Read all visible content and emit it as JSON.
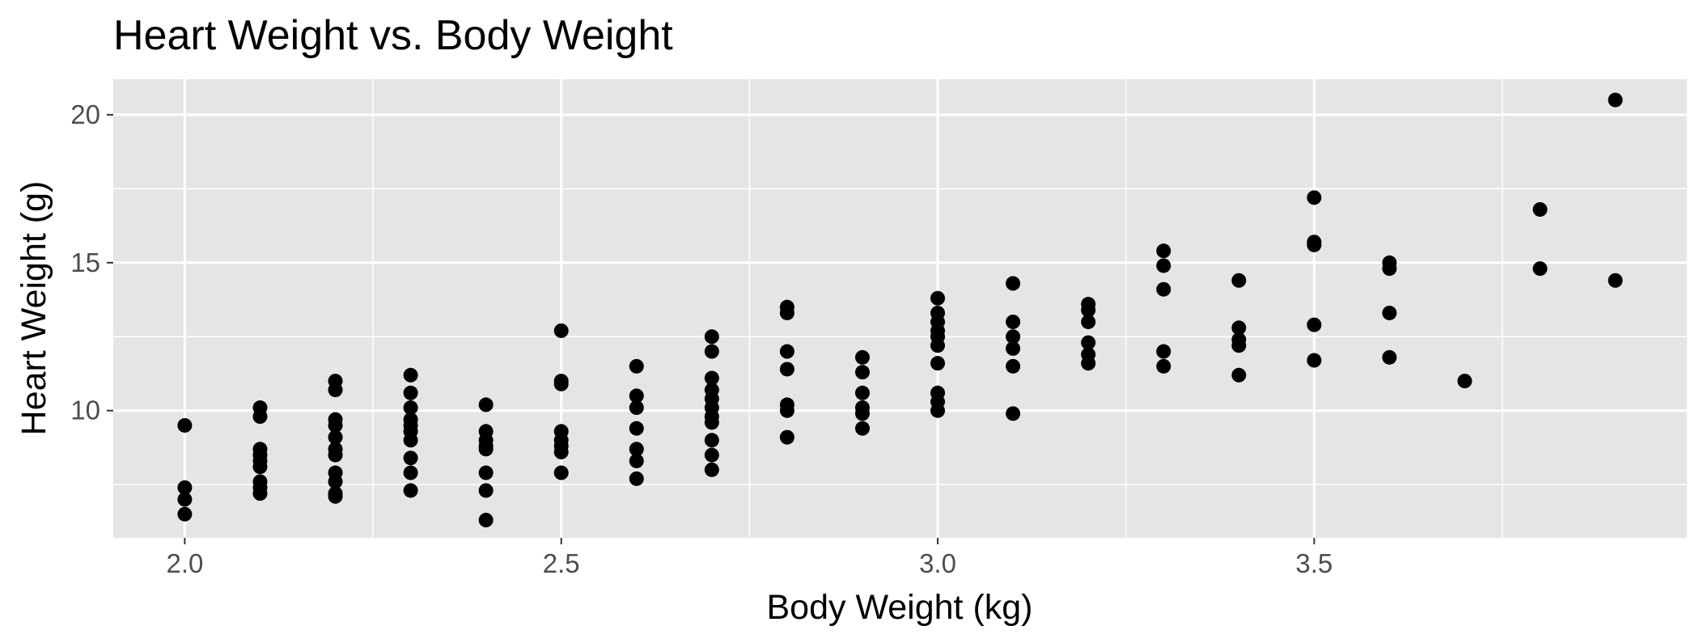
{
  "chart_data": {
    "type": "scatter",
    "title": "Heart Weight vs. Body Weight",
    "xlabel": "Body Weight (kg)",
    "ylabel": "Heart Weight (g)",
    "xlim": [
      1.905,
      3.995
    ],
    "ylim": [
      5.7,
      21.2
    ],
    "x_ticks": [
      2.0,
      2.5,
      3.0,
      3.5
    ],
    "x_tick_labels": [
      "2.0",
      "2.5",
      "3.0",
      "3.5"
    ],
    "y_ticks": [
      10,
      15,
      20
    ],
    "y_tick_labels": [
      "10",
      "15",
      "20"
    ],
    "grid": true,
    "legend": "none",
    "colors": {
      "panel": "#e5e5e5",
      "grid": "#ffffff",
      "point": "#000000",
      "tick": "#333333"
    },
    "series": [
      {
        "points": [
          [
            2.0,
            9.5
          ],
          [
            2.0,
            7.4
          ],
          [
            2.0,
            7.0
          ],
          [
            2.0,
            6.5
          ],
          [
            2.1,
            10.1
          ],
          [
            2.1,
            9.8
          ],
          [
            2.1,
            8.7
          ],
          [
            2.1,
            8.5
          ],
          [
            2.1,
            8.3
          ],
          [
            2.1,
            8.1
          ],
          [
            2.1,
            7.6
          ],
          [
            2.1,
            7.4
          ],
          [
            2.1,
            7.2
          ],
          [
            2.2,
            11.0
          ],
          [
            2.2,
            10.7
          ],
          [
            2.2,
            9.7
          ],
          [
            2.2,
            9.5
          ],
          [
            2.2,
            9.1
          ],
          [
            2.2,
            8.7
          ],
          [
            2.2,
            8.5
          ],
          [
            2.2,
            7.9
          ],
          [
            2.2,
            7.6
          ],
          [
            2.2,
            7.2
          ],
          [
            2.2,
            7.1
          ],
          [
            2.3,
            11.2
          ],
          [
            2.3,
            10.6
          ],
          [
            2.3,
            10.1
          ],
          [
            2.3,
            9.7
          ],
          [
            2.3,
            9.5
          ],
          [
            2.3,
            9.3
          ],
          [
            2.3,
            9.0
          ],
          [
            2.3,
            8.4
          ],
          [
            2.3,
            7.9
          ],
          [
            2.3,
            7.3
          ],
          [
            2.4,
            10.2
          ],
          [
            2.4,
            9.3
          ],
          [
            2.4,
            9.0
          ],
          [
            2.4,
            8.8
          ],
          [
            2.4,
            8.7
          ],
          [
            2.4,
            7.9
          ],
          [
            2.4,
            7.3
          ],
          [
            2.4,
            6.3
          ],
          [
            2.5,
            12.7
          ],
          [
            2.5,
            11.0
          ],
          [
            2.5,
            10.9
          ],
          [
            2.5,
            9.3
          ],
          [
            2.5,
            9.0
          ],
          [
            2.5,
            8.8
          ],
          [
            2.5,
            8.6
          ],
          [
            2.5,
            7.9
          ],
          [
            2.6,
            11.5
          ],
          [
            2.6,
            10.5
          ],
          [
            2.6,
            10.1
          ],
          [
            2.6,
            9.4
          ],
          [
            2.6,
            8.7
          ],
          [
            2.6,
            8.3
          ],
          [
            2.6,
            7.7
          ],
          [
            2.7,
            12.5
          ],
          [
            2.7,
            12.0
          ],
          [
            2.7,
            11.1
          ],
          [
            2.7,
            10.7
          ],
          [
            2.7,
            10.4
          ],
          [
            2.7,
            10.1
          ],
          [
            2.7,
            9.8
          ],
          [
            2.7,
            9.6
          ],
          [
            2.7,
            9.0
          ],
          [
            2.7,
            8.5
          ],
          [
            2.7,
            8.0
          ],
          [
            2.8,
            13.5
          ],
          [
            2.8,
            13.3
          ],
          [
            2.8,
            12.0
          ],
          [
            2.8,
            11.4
          ],
          [
            2.8,
            10.2
          ],
          [
            2.8,
            10.0
          ],
          [
            2.8,
            9.1
          ],
          [
            2.9,
            11.8
          ],
          [
            2.9,
            11.3
          ],
          [
            2.9,
            10.6
          ],
          [
            2.9,
            10.1
          ],
          [
            2.9,
            9.9
          ],
          [
            2.9,
            9.4
          ],
          [
            3.0,
            13.8
          ],
          [
            3.0,
            13.3
          ],
          [
            3.0,
            13.0
          ],
          [
            3.0,
            12.7
          ],
          [
            3.0,
            12.5
          ],
          [
            3.0,
            12.2
          ],
          [
            3.0,
            11.6
          ],
          [
            3.0,
            10.6
          ],
          [
            3.0,
            10.3
          ],
          [
            3.0,
            10.0
          ],
          [
            3.1,
            14.3
          ],
          [
            3.1,
            13.0
          ],
          [
            3.1,
            12.5
          ],
          [
            3.1,
            12.1
          ],
          [
            3.1,
            11.5
          ],
          [
            3.1,
            9.9
          ],
          [
            3.2,
            13.6
          ],
          [
            3.2,
            13.4
          ],
          [
            3.2,
            13.0
          ],
          [
            3.2,
            12.3
          ],
          [
            3.2,
            11.9
          ],
          [
            3.2,
            11.6
          ],
          [
            3.3,
            15.4
          ],
          [
            3.3,
            14.9
          ],
          [
            3.3,
            14.1
          ],
          [
            3.3,
            12.0
          ],
          [
            3.3,
            11.5
          ],
          [
            3.4,
            14.4
          ],
          [
            3.4,
            12.8
          ],
          [
            3.4,
            12.4
          ],
          [
            3.4,
            12.2
          ],
          [
            3.4,
            11.2
          ],
          [
            3.5,
            17.2
          ],
          [
            3.5,
            15.7
          ],
          [
            3.5,
            15.6
          ],
          [
            3.5,
            12.9
          ],
          [
            3.5,
            11.7
          ],
          [
            3.6,
            15.0
          ],
          [
            3.6,
            14.8
          ],
          [
            3.6,
            13.3
          ],
          [
            3.6,
            11.8
          ],
          [
            3.7,
            11.0
          ],
          [
            3.8,
            16.8
          ],
          [
            3.8,
            14.8
          ],
          [
            3.9,
            20.5
          ],
          [
            3.9,
            14.4
          ]
        ]
      }
    ]
  }
}
